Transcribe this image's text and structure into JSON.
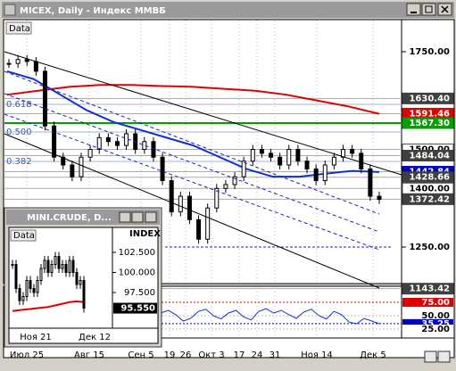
{
  "window": {
    "title": "MICEX, Daily - Индекс ММВБ"
  },
  "main": {
    "data_label": "Data",
    "yticks": [
      {
        "value": 1750,
        "label": "1750.00"
      },
      {
        "value": 1250,
        "label": "1250.00"
      }
    ],
    "markers": [
      {
        "value": 1630.4,
        "label": "1630.40",
        "color": "#404040"
      },
      {
        "value": 1591.46,
        "label": "1591.46",
        "color": "#e00000"
      },
      {
        "value": 1567.3,
        "label": "1567.30",
        "color": "#00a000"
      },
      {
        "value": 1500,
        "label": "1500.00",
        "color": "#ffffff"
      },
      {
        "value": 1484.04,
        "label": "1484.04",
        "color": "#404040"
      },
      {
        "value": 1442.84,
        "label": "1442.84",
        "color": "#0000c0"
      },
      {
        "value": 1428.66,
        "label": "1428.66",
        "color": "#404040"
      },
      {
        "value": 1400,
        "label": "1400.00",
        "color": "#ffffff"
      },
      {
        "value": 1372.42,
        "label": "1372.42",
        "color": "#404040"
      },
      {
        "value": 1143.42,
        "label": "1143.42",
        "color": "#404040"
      }
    ],
    "fib_labels": [
      "0.618",
      "0.500",
      "0.382"
    ],
    "close": [
      1720,
      1730,
      1725,
      1700,
      1560,
      1480,
      1460,
      1430,
      1480,
      1500,
      1530,
      1520,
      1510,
      1540,
      1500,
      1520,
      1480,
      1420,
      1340,
      1380,
      1320,
      1270,
      1350,
      1400,
      1410,
      1430,
      1470,
      1500,
      1490,
      1480,
      1460,
      1500,
      1470,
      1450,
      1420,
      1460,
      1480,
      1500,
      1490,
      1450,
      1380,
      1372
    ],
    "ma_red": [
      1640,
      1650,
      1660,
      1665,
      1665,
      1662,
      1660,
      1655,
      1650,
      1640,
      1625,
      1610,
      1591
    ],
    "ma_blue": [
      1700,
      1680,
      1640,
      1600,
      1570,
      1550,
      1530,
      1510,
      1480,
      1450,
      1430,
      1430,
      1438,
      1445,
      1442
    ],
    "dates": [
      "Июл 25",
      "Авг 15",
      "Сен 5",
      "19",
      "26",
      "Окт 3",
      "17",
      "24",
      "31",
      "Ноя 14",
      "Дек 5"
    ],
    "indicator_ticks": [
      {
        "value": 75,
        "label": "75.00",
        "color": "#e00000"
      },
      {
        "value": 50,
        "label": "50.00",
        "color": "#ffffff"
      },
      {
        "value": 35.25,
        "label": "35.25",
        "color": "#0000c0"
      },
      {
        "value": 25,
        "label": "25.00",
        "color": "#ffffff"
      }
    ],
    "indicator": [
      55,
      60,
      52,
      40,
      45,
      58,
      62,
      50,
      44,
      55,
      60,
      48,
      42,
      58,
      63,
      55,
      60,
      52,
      45,
      57,
      62,
      50,
      44,
      58,
      52,
      38,
      35,
      45,
      40,
      35
    ]
  },
  "inset": {
    "title": "MINI.CRUDE, D...",
    "data_label": "Data",
    "axis_header": "INDEX",
    "yticks": [
      {
        "value": 102.5,
        "label": "102.500"
      },
      {
        "value": 100,
        "label": "100.000"
      },
      {
        "value": 97.5,
        "label": "97.500"
      }
    ],
    "current": {
      "value": 95.55,
      "label": "95.550"
    },
    "close": [
      101,
      98,
      96.5,
      97,
      99,
      98,
      97.5,
      99,
      100.5,
      101.5,
      100,
      101,
      102,
      100.5,
      101,
      100,
      101.5,
      100,
      98.5,
      99,
      95.55
    ],
    "ma": [
      95.2,
      95.3,
      95.4,
      95.5,
      95.6,
      95.7,
      95.9,
      96.1,
      96.3,
      96.4,
      96.3
    ],
    "dates": [
      "Ноя 21",
      "Дек 12"
    ]
  }
}
